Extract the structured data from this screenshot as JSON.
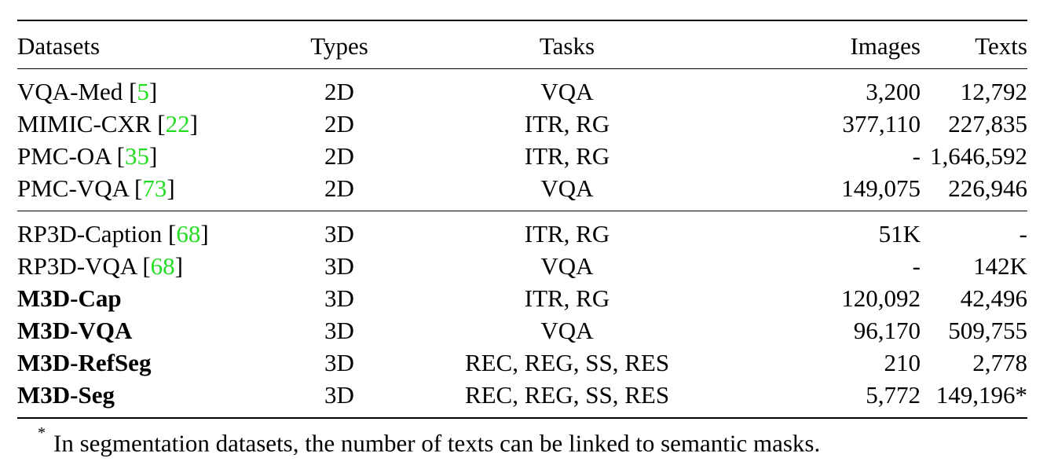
{
  "table": {
    "headers": {
      "datasets": "Datasets",
      "types": "Types",
      "tasks": "Tasks",
      "images": "Images",
      "texts": "Texts"
    },
    "groups": [
      {
        "rows": [
          {
            "name": "VQA-Med",
            "cite": "5",
            "bold": false,
            "type": "2D",
            "tasks": "VQA",
            "images": "3,200",
            "texts": "12,792"
          },
          {
            "name": "MIMIC-CXR",
            "cite": "22",
            "bold": false,
            "type": "2D",
            "tasks": "ITR, RG",
            "images": "377,110",
            "texts": "227,835"
          },
          {
            "name": "PMC-OA",
            "cite": "35",
            "bold": false,
            "type": "2D",
            "tasks": "ITR, RG",
            "images": "-",
            "texts": "1,646,592"
          },
          {
            "name": "PMC-VQA",
            "cite": "73",
            "bold": false,
            "type": "2D",
            "tasks": "VQA",
            "images": "149,075",
            "texts": "226,946"
          }
        ]
      },
      {
        "rows": [
          {
            "name": "RP3D-Caption",
            "cite": "68",
            "bold": false,
            "type": "3D",
            "tasks": "ITR, RG",
            "images": "51K",
            "texts": "-"
          },
          {
            "name": "RP3D-VQA",
            "cite": "68",
            "bold": false,
            "type": "3D",
            "tasks": "VQA",
            "images": "-",
            "texts": "142K"
          },
          {
            "name": "M3D-Cap",
            "cite": "",
            "bold": true,
            "type": "3D",
            "tasks": "ITR, RG",
            "images": "120,092",
            "texts": "42,496"
          },
          {
            "name": "M3D-VQA",
            "cite": "",
            "bold": true,
            "type": "3D",
            "tasks": "VQA",
            "images": "96,170",
            "texts": "509,755"
          },
          {
            "name": "M3D-RefSeg",
            "cite": "",
            "bold": true,
            "type": "3D",
            "tasks": "REC, REG, SS, RES",
            "images": "210",
            "texts": "2,778"
          },
          {
            "name": "M3D-Seg",
            "cite": "",
            "bold": true,
            "type": "3D",
            "tasks": "REC, REG, SS, RES",
            "images": "5,772",
            "texts": "149,196*"
          }
        ]
      }
    ]
  },
  "footnote": {
    "marker": "*",
    "text": "In segmentation datasets, the number of texts can be linked to semantic masks."
  },
  "colors": {
    "citation": "#22dd22",
    "text": "#000000",
    "rules": "#000000"
  }
}
